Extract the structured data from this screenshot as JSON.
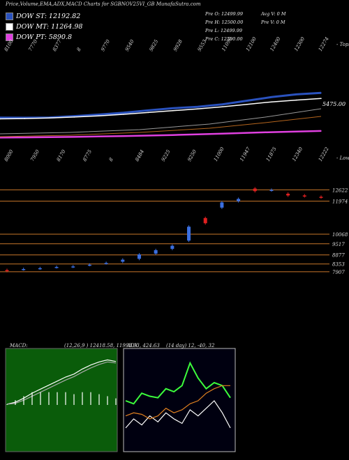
{
  "title": "Price,Volume,EMA,ADX,MACD Charts for SGBNOV25VI_GB MunafaSutra.com",
  "legend": [
    {
      "label": "DOW ST: 12192.82",
      "color": "#2a52be"
    },
    {
      "label": "DOW MT: 11264.98",
      "color": "#ffffff"
    },
    {
      "label": "DOW PT: 5890.8",
      "color": "#e040e0"
    }
  ],
  "stats_left": [
    "Pre  O: 12499.99",
    "Pre  H: 12500.00",
    "Pre  L: 12499.99",
    "Pre  C: 12500.00"
  ],
  "stats_right": [
    "Avg V: 0  M",
    "Pre  V: 0  M"
  ],
  "top_chart": {
    "axis_tag": "- Tops",
    "price_tag": "5475.00",
    "top_labels": [
      "8100",
      "7770",
      "8377",
      "8",
      "9770",
      "9540",
      "9825",
      "9928",
      "9553",
      "11090",
      "12100",
      "12400",
      "12300",
      "12274"
    ]
  },
  "mid_chart": {
    "axis_tag": "- Lows",
    "top_labels": [
      "8000",
      "7950",
      "8170",
      "8775",
      "8",
      "8484",
      "9225",
      "9250",
      "11000",
      "11947",
      "11875",
      "12340",
      "12222"
    ],
    "levels": [
      "12622",
      "11974",
      "10068",
      "9517",
      "8877",
      "8353",
      "7907"
    ]
  },
  "macd": {
    "label": "MACD:",
    "params": "(12,26,9 ) 12418.58, 11993.93, 424.63"
  },
  "adx": {
    "label": "ADX",
    "params": "(14 day) 12, -40, 32"
  },
  "chart_data": [
    {
      "type": "line",
      "title": "Price,Volume,EMA,ADX,MACD Charts for SGBNOV25VI_GB MunafaSutra.com",
      "series": [
        {
          "name": "DOW ST",
          "values": [
            8100,
            8080,
            8120,
            8350,
            8600,
            8900,
            9300,
            9650,
            9900,
            10300,
            10900,
            11500,
            11950,
            12192.82
          ]
        },
        {
          "name": "DOW MT",
          "values": [
            7900,
            7950,
            8050,
            8200,
            8400,
            8650,
            8950,
            9250,
            9550,
            9900,
            10300,
            10700,
            11000,
            11264.98
          ]
        },
        {
          "name": "DOW PT",
          "values": [
            4800,
            4830,
            4870,
            4920,
            4980,
            5050,
            5130,
            5230,
            5340,
            5460,
            5580,
            5700,
            5800,
            5890.8
          ]
        }
      ]
    },
    {
      "type": "bar",
      "title": "",
      "candles": [
        {
          "o": 8000,
          "c": 7950
        },
        {
          "o": 8050,
          "c": 8060
        },
        {
          "o": 8100,
          "c": 8110
        },
        {
          "o": 8170,
          "c": 8180
        },
        {
          "o": 8200,
          "c": 8210
        },
        {
          "o": 8300,
          "c": 8310
        },
        {
          "o": 8400,
          "c": 8410
        },
        {
          "o": 8484,
          "c": 8600
        },
        {
          "o": 8650,
          "c": 8900
        },
        {
          "o": 8950,
          "c": 9150
        },
        {
          "o": 9225,
          "c": 9400
        },
        {
          "o": 9700,
          "c": 10500
        },
        {
          "o": 11000,
          "c": 10700
        },
        {
          "o": 11600,
          "c": 11900
        },
        {
          "o": 11974,
          "c": 12100
        },
        {
          "o": 12700,
          "c": 12550
        },
        {
          "o": 12600,
          "c": 12622
        },
        {
          "o": 12400,
          "c": 12300
        },
        {
          "o": 12300,
          "c": 12260
        },
        {
          "o": 12222,
          "c": 12200
        }
      ]
    },
    {
      "type": "line",
      "title": "MACD: (12,26,9 ) 12418.58, 11993.93, 424.63",
      "series": [
        {
          "name": "MACD",
          "values": [
            0,
            20,
            60,
            110,
            150,
            190,
            230,
            270,
            300,
            350,
            390,
            420,
            440,
            424.63
          ]
        },
        {
          "name": "Signal",
          "values": [
            0,
            10,
            40,
            80,
            120,
            160,
            200,
            240,
            275,
            320,
            360,
            395,
            420,
            410
          ]
        }
      ]
    },
    {
      "type": "line",
      "title": "ADX (14 day) 12, -40, 32",
      "series": [
        {
          "name": "ADX",
          "values": [
            12,
            18,
            14,
            20,
            16,
            22,
            18,
            15,
            24,
            20,
            25,
            30,
            22,
            12
          ]
        },
        {
          "name": "+DI",
          "values": [
            30,
            28,
            35,
            33,
            32,
            38,
            36,
            40,
            55,
            45,
            38,
            42,
            40,
            32
          ]
        },
        {
          "name": "-DI",
          "values": [
            20,
            22,
            21,
            18,
            20,
            25,
            22,
            24,
            28,
            30,
            35,
            38,
            40,
            40
          ]
        }
      ]
    }
  ]
}
